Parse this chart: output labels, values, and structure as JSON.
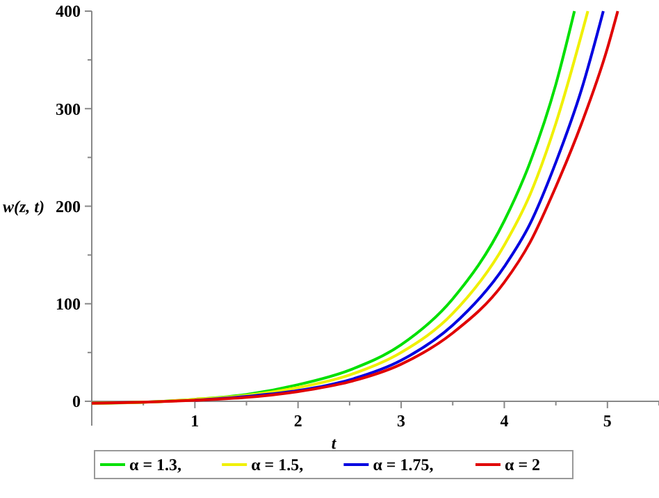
{
  "chart_data": {
    "type": "line",
    "xlabel": "t",
    "ylabel": "w(z, t)",
    "xlim": [
      0,
      5.5
    ],
    "ylim": [
      -25,
      400
    ],
    "xticks": [
      {
        "value": 0.5,
        "label": null
      },
      1,
      {
        "value": 1.5,
        "label": null
      },
      2,
      {
        "value": 2.5,
        "label": null
      },
      3,
      {
        "value": 3.5,
        "label": null
      },
      4,
      {
        "value": 4.5,
        "label": null
      },
      5,
      {
        "value": 5.5,
        "label": null
      }
    ],
    "yticks": [
      0,
      {
        "value": 50,
        "label": null
      },
      100,
      {
        "value": 150,
        "label": null
      },
      200,
      {
        "value": 250,
        "label": null
      },
      300,
      {
        "value": 350,
        "label": null
      },
      400
    ],
    "legend": "bottom",
    "grid": false,
    "line_style": "solid",
    "series": [
      {
        "name": "α = 1.3,",
        "color": "#00e000",
        "x": [
          0,
          0.5,
          1,
          1.5,
          2,
          2.5,
          3,
          3.5,
          4,
          4.25,
          4.5,
          4.68
        ],
        "values": [
          -2,
          -1,
          2,
          7,
          17,
          32,
          58,
          105,
          185,
          245,
          325,
          400
        ]
      },
      {
        "name": "α = 1.5,",
        "color": "#f0f000",
        "x": [
          0,
          0.5,
          1,
          1.5,
          2,
          2.5,
          3,
          3.5,
          4,
          4.25,
          4.5,
          4.81
        ],
        "values": [
          -2,
          -1,
          2,
          6,
          14,
          27,
          50,
          90,
          160,
          212,
          285,
          400
        ]
      },
      {
        "name": "α = 1.75,",
        "color": "#0000e0",
        "x": [
          1,
          1.5,
          2,
          2.5,
          3,
          3.5,
          4,
          4.25,
          4.5,
          4.75,
          4.96
        ],
        "values": [
          1,
          5,
          11,
          22,
          42,
          78,
          138,
          182,
          245,
          320,
          400
        ]
      },
      {
        "name": "α = 2",
        "color": "#e00000",
        "x": [
          0,
          0.5,
          1,
          1.5,
          2,
          2.5,
          3,
          3.5,
          4,
          4.25,
          4.5,
          4.75,
          5,
          5.1
        ],
        "values": [
          -2,
          -1,
          1,
          4,
          10,
          20,
          38,
          70,
          122,
          163,
          220,
          285,
          362,
          400
        ]
      }
    ]
  }
}
